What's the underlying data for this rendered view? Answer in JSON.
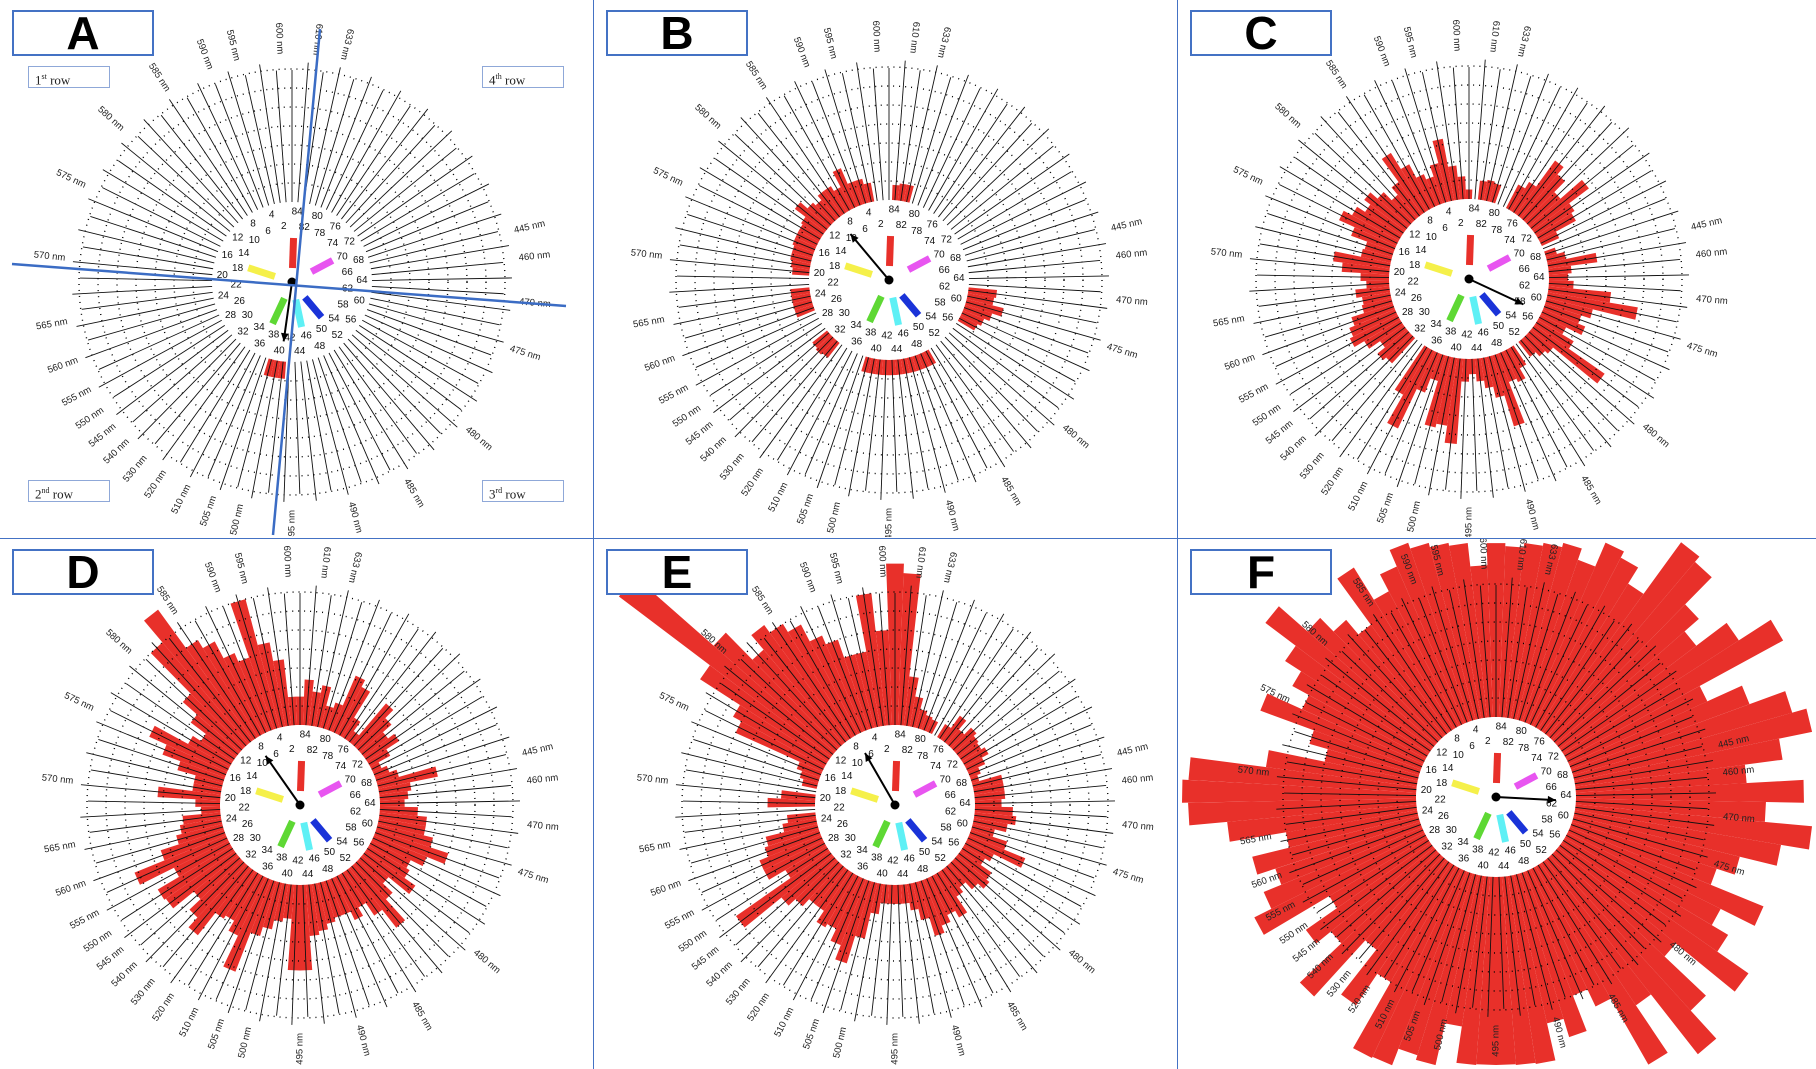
{
  "colors": {
    "bars": "#e8302a",
    "frame": "#4472c4",
    "axis_lines": "#3b6cc4",
    "center_bars": {
      "red": "#e8302a",
      "magenta": "#e855f0",
      "blue": "#1a33d8",
      "cyan": "#5ef0f5",
      "green": "#5ed834",
      "yellow": "#f5f04a"
    }
  },
  "row_labels": [
    {
      "num": "1",
      "sup": "st",
      "word": "row"
    },
    {
      "num": "2",
      "sup": "nd",
      "word": "row"
    },
    {
      "num": "3",
      "sup": "rd",
      "word": "row"
    },
    {
      "num": "4",
      "sup": "th",
      "word": "row"
    }
  ],
  "chart_data": {
    "type": "polar-bar",
    "description_units": "error score per cap (radial extent beyond baseline ring)",
    "caps": 85,
    "cap_labels": [
      "2",
      "4",
      "6",
      "8",
      "10",
      "12",
      "14",
      "16",
      "18",
      "20",
      "22",
      "24",
      "26",
      "28",
      "30",
      "32",
      "34",
      "36",
      "38",
      "40",
      "42",
      "44",
      "46",
      "48",
      "50",
      "52",
      "54",
      "56",
      "58",
      "60",
      "62",
      "64",
      "66",
      "68",
      "70",
      "72",
      "74",
      "76",
      "78",
      "80",
      "82",
      "84"
    ],
    "wavelength_labels": [
      {
        "text": "595 nm",
        "deg": -14
      },
      {
        "text": "600 nm",
        "deg": -3
      },
      {
        "text": "610 nm",
        "deg": 6
      },
      {
        "text": "633 nm",
        "deg": 13
      },
      {
        "text": "445 nm",
        "deg": 77
      },
      {
        "text": "460 nm",
        "deg": 84
      },
      {
        "text": "470 nm",
        "deg": 95
      },
      {
        "text": "475 nm",
        "deg": 107
      },
      {
        "text": "480 nm",
        "deg": 130
      },
      {
        "text": "485 nm",
        "deg": 150
      },
      {
        "text": "490 nm",
        "deg": 165
      },
      {
        "text": "495 nm",
        "deg": 180
      },
      {
        "text": "500 nm",
        "deg": 193
      },
      {
        "text": "505 nm",
        "deg": 200
      },
      {
        "text": "510 nm",
        "deg": 207
      },
      {
        "text": "520 nm",
        "deg": 214
      },
      {
        "text": "530 nm",
        "deg": 220
      },
      {
        "text": "540 nm",
        "deg": 226
      },
      {
        "text": "545 nm",
        "deg": 231
      },
      {
        "text": "550 nm",
        "deg": 236
      },
      {
        "text": "555 nm",
        "deg": 242
      },
      {
        "text": "560 nm",
        "deg": 250
      },
      {
        "text": "565 nm",
        "deg": 260
      },
      {
        "text": "570 nm",
        "deg": 276
      },
      {
        "text": "575 nm",
        "deg": 295
      },
      {
        "text": "580 nm",
        "deg": 312
      },
      {
        "text": "585 nm",
        "deg": 327
      },
      {
        "text": "590 nm",
        "deg": 339
      }
    ],
    "panels": [
      {
        "label": "A",
        "arrow_deg": 188,
        "values": [
          0,
          0,
          0,
          0,
          0,
          0,
          0,
          0,
          0,
          0,
          0,
          0,
          0,
          0,
          0,
          0,
          0,
          0,
          0,
          0,
          0,
          0,
          0,
          0,
          0,
          0,
          0,
          0,
          0,
          0,
          0,
          0,
          0,
          0,
          0,
          0,
          0,
          0,
          0.9,
          0.9,
          0.9,
          0,
          0,
          0,
          0,
          0,
          0,
          0,
          0,
          0,
          0,
          0,
          0,
          0,
          0,
          0,
          0,
          0,
          0,
          0,
          0,
          0,
          0,
          0,
          0,
          0,
          0,
          0,
          0,
          0,
          0,
          0,
          0,
          0,
          0,
          0,
          0,
          0,
          0,
          0,
          0,
          0,
          0,
          0,
          0
        ]
      },
      {
        "label": "B",
        "arrow_deg": 320,
        "values": [
          0,
          0,
          1,
          1.3,
          1.3,
          2.2,
          1.3,
          1.6,
          1.6,
          1.3,
          1.5,
          2,
          1.3,
          1.2,
          1.2,
          1.2,
          1.1,
          1.1,
          1,
          0.9,
          0,
          0,
          1,
          1,
          1,
          1,
          0,
          0,
          0,
          0,
          1,
          1.1,
          1,
          0,
          0,
          0,
          0,
          0,
          0.8,
          0.8,
          0.8,
          0.8,
          0.8,
          0.8,
          0.8,
          0.8,
          0.8,
          0.8,
          0.8,
          0,
          0,
          0,
          0,
          0,
          0,
          0,
          1,
          1.2,
          1.5,
          2,
          1.4,
          1.5,
          0,
          0,
          0,
          0,
          0,
          0,
          0,
          0,
          0,
          0,
          0,
          0,
          0,
          0,
          0,
          0,
          0,
          0,
          0,
          0.9,
          0.9,
          0.8,
          0
        ]
      },
      {
        "label": "C",
        "arrow_deg": 115,
        "values": [
          1.2,
          1.8,
          3.3,
          2.1,
          1.5,
          1.8,
          2.6,
          3.6,
          2.1,
          1.6,
          2.2,
          2.7,
          2.3,
          2.8,
          3.3,
          2.4,
          1.5,
          1.6,
          3,
          2.5,
          1.5,
          1.2,
          1.8,
          1.5,
          1.6,
          2.3,
          2.6,
          2.8,
          2.2,
          1.5,
          2,
          1.8,
          0,
          0,
          2.8,
          4.5,
          2.2,
          1.4,
          3.8,
          3.6,
          4.5,
          1.2,
          0.8,
          1.2,
          1.6,
          2.2,
          3.9,
          1.6,
          1.8,
          1.2,
          0,
          1,
          1.3,
          1.5,
          4.5,
          2.2,
          1.5,
          2.4,
          2,
          2.5,
          4.8,
          3.3,
          1.3,
          1,
          1.2,
          2.6,
          1,
          0.6,
          0,
          1,
          2.2,
          2.4,
          3.7,
          2.2,
          3,
          3.5,
          1.8,
          1.4,
          0,
          0,
          1,
          1.1,
          1,
          0,
          0.5
        ]
      },
      {
        "label": "D",
        "arrow_deg": 325,
        "values": [
          1.5,
          3.5,
          4.5,
          7,
          4,
          4.5,
          5.5,
          6,
          8.5,
          7,
          4,
          3,
          2,
          2.5,
          4.5,
          3.5,
          2.5,
          1.5,
          1.5,
          3.3,
          1.3,
          1,
          2,
          2.2,
          2.5,
          3.5,
          5.2,
          3.2,
          4.5,
          4.4,
          3,
          3.8,
          4.5,
          3,
          2.8,
          3.4,
          5.2,
          3,
          2.5,
          2,
          1.8,
          4.5,
          4.5,
          2.7,
          2.5,
          2.2,
          2,
          2,
          2.5,
          2,
          2.8,
          4,
          2.5,
          1.8,
          3.2,
          2.5,
          2.3,
          3,
          4,
          3,
          2.5,
          2.5,
          2,
          1.3,
          1.5,
          1.7,
          3.2,
          1.2,
          0.8,
          0.5,
          1.2,
          2,
          1.6,
          2.2,
          2.8,
          0.6,
          1.2,
          2.8,
          3.2,
          1.5,
          1.2,
          2.2,
          1.8,
          2.4,
          1.5
        ]
      },
      {
        "label": "E",
        "arrow_deg": 330,
        "values": [
          5,
          7,
          4,
          4,
          5,
          5.5,
          6.5,
          7,
          7.5,
          6.5,
          8.5,
          14,
          8,
          5.5,
          5,
          1.3,
          1,
          0.8,
          0,
          1.8,
          2.5,
          0,
          1.5,
          1.8,
          2.8,
          3,
          3.5,
          3.5,
          2.5,
          6,
          3.5,
          3,
          2.5,
          2.5,
          3.2,
          3,
          3.7,
          4.5,
          3,
          1.6,
          1,
          1,
          1,
          1,
          1.4,
          2,
          3,
          2.6,
          2.2,
          2.6,
          1.6,
          1.3,
          1.8,
          2.2,
          2,
          1.3,
          1.6,
          3.2,
          2,
          1.2,
          1.8,
          2.2,
          2,
          1.4,
          1.6,
          1.6,
          1.6,
          0.4,
          0.6,
          1,
          1.4,
          1.2,
          1.3,
          1.5,
          1,
          1.6,
          0.8,
          0,
          0.7,
          0.8,
          1,
          1.6,
          2.6,
          8,
          8.5
        ]
      },
      {
        "label": "F",
        "arrow_deg": 93,
        "values": [
          8,
          11,
          13,
          10,
          11,
          9,
          8,
          10,
          7,
          8,
          9,
          11,
          9,
          8,
          7,
          9,
          6,
          5,
          8,
          12,
          13,
          12,
          10,
          7,
          9,
          8,
          9,
          10,
          6,
          8,
          7,
          10,
          6,
          9,
          7,
          11,
          12,
          10,
          13,
          8,
          14,
          13,
          12,
          14,
          10,
          8,
          9,
          7,
          8,
          12,
          9,
          13,
          11,
          8,
          12,
          10,
          9,
          11,
          8,
          9,
          11,
          13,
          10,
          12,
          9,
          11,
          14,
          12,
          10,
          8,
          13,
          11,
          9,
          10,
          12,
          14,
          9,
          10,
          11,
          9,
          11,
          12,
          13,
          9,
          10
        ]
      }
    ]
  }
}
